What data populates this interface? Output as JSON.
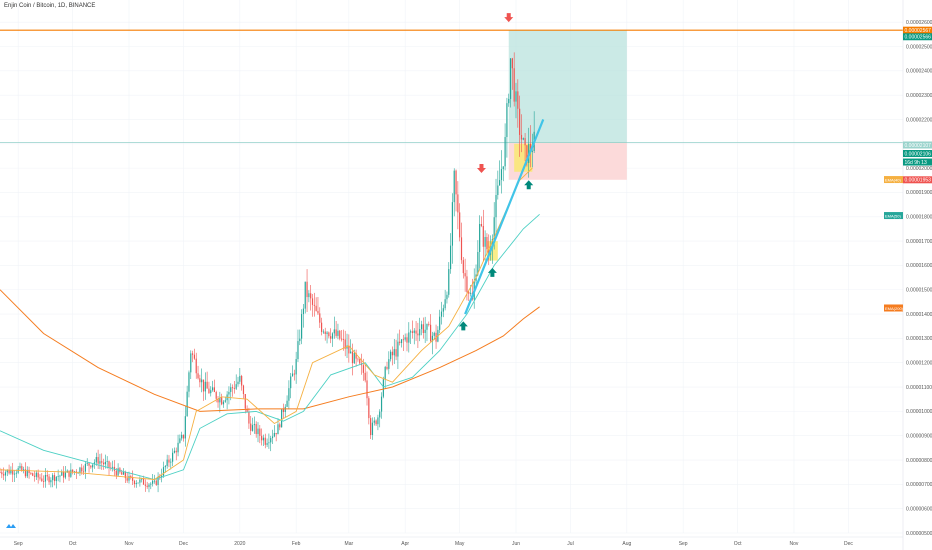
{
  "header": {
    "title": "Enjin Coin / Bitcoin, 1D, BINANCE"
  },
  "colors": {
    "up": "#26a69a",
    "down": "#ef5350",
    "ema_fast": "#f5b041",
    "ema_mid": "#4dd0c4",
    "ema_slow": "#f57c1f",
    "resistance": "#f57c00",
    "entry": "#26a69a",
    "trend": "#40c4e8",
    "highlight": "#f9e86b",
    "target_zone": "#b9e3dd",
    "stop_zone": "#fbd3d3",
    "marker_down": "#ef5350",
    "marker_up": "#00897b"
  },
  "chart_data": {
    "type": "candlestick",
    "title": "Enjin Coin / Bitcoin, 1D, BINANCE",
    "ylim": [
      5e-06,
      2.65e-05
    ],
    "x_range": [
      "2019-08-22",
      "2020-12-31"
    ],
    "x_ticks": [
      {
        "label": "Sep",
        "date": "2019-09-01"
      },
      {
        "label": "Oct",
        "date": "2019-10-01"
      },
      {
        "label": "Nov",
        "date": "2019-11-01"
      },
      {
        "label": "Dec",
        "date": "2019-12-01"
      },
      {
        "label": "2020",
        "date": "2020-01-01"
      },
      {
        "label": "Feb",
        "date": "2020-02-01"
      },
      {
        "label": "Mar",
        "date": "2020-03-01"
      },
      {
        "label": "Apr",
        "date": "2020-04-01"
      },
      {
        "label": "May",
        "date": "2020-05-01"
      },
      {
        "label": "Jun",
        "date": "2020-06-01"
      },
      {
        "label": "Jul",
        "date": "2020-07-01"
      },
      {
        "label": "Aug",
        "date": "2020-08-01"
      },
      {
        "label": "Sep",
        "date": "2020-09-01"
      },
      {
        "label": "Oct",
        "date": "2020-10-01"
      },
      {
        "label": "Nov",
        "date": "2020-11-01"
      },
      {
        "label": "Dec",
        "date": "2020-12-01"
      }
    ],
    "y_ticks": [
      "0.00002600",
      "0.00002500",
      "0.00002400",
      "0.00002300",
      "0.00002200",
      "0.00002100",
      "0.00002000",
      "0.00001900",
      "0.00001800",
      "0.00001700",
      "0.00001600",
      "0.00001500",
      "0.00001400",
      "0.00001300",
      "0.00001200",
      "0.00001100",
      "0.00001000",
      "0.00000900",
      "0.00000800",
      "0.00000700",
      "0.00000600",
      "0.00000500"
    ],
    "price_tags": [
      {
        "label": "0.00002567",
        "value": 2.567e-05,
        "color": "#f57c00"
      },
      {
        "label": "0.00002566",
        "value": 2.54e-05,
        "color": "#089981"
      },
      {
        "label": "0.00002107",
        "value": 2.095e-05,
        "color": "#9ad3cc"
      },
      {
        "label": "0.00002106",
        "value": 2.06e-05,
        "color": "#089981"
      },
      {
        "label": "16d 9h 13",
        "value": 2.025e-05,
        "color": "#089981"
      },
      {
        "label": "0.00001953",
        "value": 1.952e-05,
        "color": "#ef5350"
      }
    ],
    "indicator_tags": [
      {
        "label": "EMA(40)",
        "value": 1.953e-05,
        "color": "#f5b041"
      },
      {
        "label": "EMA(50)",
        "value": 1.805e-05,
        "color": "#26a69a"
      },
      {
        "label": "EMA(200)",
        "value": 1.425e-05,
        "color": "#f57c1f"
      }
    ],
    "resistance": 2.567e-05,
    "position": {
      "entry": 2.105e-05,
      "target": 2.567e-05,
      "stop": 1.952e-05,
      "start": "2020-05-28",
      "end": "2020-08-01"
    },
    "trend_line": [
      {
        "date": "2020-05-04",
        "value": 1.4e-05
      },
      {
        "date": "2020-06-16",
        "value": 2.2e-05
      }
    ],
    "highlights": [
      {
        "start": "2020-05-16",
        "end": "2020-05-22",
        "low": 1.62e-05,
        "high": 1.7e-05
      },
      {
        "start": "2020-05-31",
        "end": "2020-06-10",
        "low": 1.985e-05,
        "high": 2.1e-05
      }
    ],
    "markers": [
      {
        "date": "2020-05-28",
        "value": 2.6e-05,
        "dir": "down"
      },
      {
        "date": "2020-05-13",
        "value": 1.98e-05,
        "dir": "down"
      },
      {
        "date": "2020-05-03",
        "value": 1.37e-05,
        "dir": "up"
      },
      {
        "date": "2020-05-19",
        "value": 1.59e-05,
        "dir": "up"
      },
      {
        "date": "2020-06-08",
        "value": 1.95e-05,
        "dir": "up"
      }
    ],
    "anchors": [
      [
        "2019-08-22",
        7.5e-06
      ],
      [
        "2019-09-01",
        7.6e-06
      ],
      [
        "2019-09-15",
        7.2e-06
      ],
      [
        "2019-10-01",
        7.5e-06
      ],
      [
        "2019-10-15",
        8e-06
      ],
      [
        "2019-11-01",
        7.2e-06
      ],
      [
        "2019-11-15",
        7e-06
      ],
      [
        "2019-11-25",
        8.2e-06
      ],
      [
        "2019-12-01",
        9e-06
      ],
      [
        "2019-12-05",
        1.25e-05
      ],
      [
        "2019-12-12",
        1.1e-05
      ],
      [
        "2019-12-22",
        1.05e-05
      ],
      [
        "2020-01-01",
        1.13e-05
      ],
      [
        "2020-01-06",
        9.5e-06
      ],
      [
        "2020-01-15",
        8.8e-06
      ],
      [
        "2020-01-22",
        9.3e-06
      ],
      [
        "2020-02-01",
        1.2e-05
      ],
      [
        "2020-02-06",
        1.5e-05
      ],
      [
        "2020-02-15",
        1.35e-05
      ],
      [
        "2020-02-25",
        1.3e-05
      ],
      [
        "2020-03-05",
        1.2e-05
      ],
      [
        "2020-03-10",
        1.15e-05
      ],
      [
        "2020-03-13",
        9.2e-06
      ],
      [
        "2020-03-17",
        9.8e-06
      ],
      [
        "2020-03-22",
        1.2e-05
      ],
      [
        "2020-04-01",
        1.3e-05
      ],
      [
        "2020-04-10",
        1.35e-05
      ],
      [
        "2020-04-18",
        1.3e-05
      ],
      [
        "2020-04-25",
        1.55e-05
      ],
      [
        "2020-04-28",
        1.95e-05
      ],
      [
        "2020-05-03",
        1.58e-05
      ],
      [
        "2020-05-08",
        1.45e-05
      ],
      [
        "2020-05-12",
        1.75e-05
      ],
      [
        "2020-05-17",
        1.65e-05
      ],
      [
        "2020-05-22",
        1.9e-05
      ],
      [
        "2020-05-26",
        2.1e-05
      ],
      [
        "2020-05-29",
        2.45e-05
      ],
      [
        "2020-06-02",
        2.2e-05
      ],
      [
        "2020-06-06",
        2.05e-05
      ],
      [
        "2020-06-11",
        2.106e-05
      ]
    ],
    "ema_fast": [
      [
        "2019-08-22",
        7.6e-06
      ],
      [
        "2019-10-01",
        7.5e-06
      ],
      [
        "2019-11-15",
        7.2e-06
      ],
      [
        "2019-12-01",
        8e-06
      ],
      [
        "2019-12-08",
        1e-05
      ],
      [
        "2019-12-22",
        1.06e-05
      ],
      [
        "2020-01-05",
        1.05e-05
      ],
      [
        "2020-01-20",
        9.5e-06
      ],
      [
        "2020-02-01",
        1e-05
      ],
      [
        "2020-02-10",
        1.2e-05
      ],
      [
        "2020-03-01",
        1.27e-05
      ],
      [
        "2020-03-15",
        1.15e-05
      ],
      [
        "2020-03-25",
        1.12e-05
      ],
      [
        "2020-04-10",
        1.25e-05
      ],
      [
        "2020-04-25",
        1.35e-05
      ],
      [
        "2020-05-10",
        1.55e-05
      ],
      [
        "2020-05-25",
        1.8e-05
      ],
      [
        "2020-06-03",
        1.95e-05
      ],
      [
        "2020-06-10",
        2e-05
      ]
    ],
    "ema_mid": [
      [
        "2019-08-22",
        9.2e-06
      ],
      [
        "2019-09-15",
        8.4e-06
      ],
      [
        "2019-10-15",
        7.8e-06
      ],
      [
        "2019-11-15",
        7.2e-06
      ],
      [
        "2019-12-01",
        7.6e-06
      ],
      [
        "2019-12-10",
        9.3e-06
      ],
      [
        "2019-12-25",
        9.9e-06
      ],
      [
        "2020-01-10",
        1e-05
      ],
      [
        "2020-01-25",
        9.6e-06
      ],
      [
        "2020-02-05",
        1e-05
      ],
      [
        "2020-02-20",
        1.15e-05
      ],
      [
        "2020-03-10",
        1.2e-05
      ],
      [
        "2020-03-20",
        1.1e-05
      ],
      [
        "2020-04-05",
        1.14e-05
      ],
      [
        "2020-04-20",
        1.25e-05
      ],
      [
        "2020-05-05",
        1.4e-05
      ],
      [
        "2020-05-20",
        1.6e-05
      ],
      [
        "2020-06-05",
        1.75e-05
      ],
      [
        "2020-06-14",
        1.81e-05
      ]
    ],
    "ema_slow": [
      [
        "2019-08-22",
        1.5e-05
      ],
      [
        "2019-09-15",
        1.32e-05
      ],
      [
        "2019-10-15",
        1.18e-05
      ],
      [
        "2019-11-15",
        1.07e-05
      ],
      [
        "2019-12-10",
        1e-05
      ],
      [
        "2020-01-10",
        1.01e-05
      ],
      [
        "2020-02-05",
        1.01e-05
      ],
      [
        "2020-03-01",
        1.06e-05
      ],
      [
        "2020-03-25",
        1.1e-05
      ],
      [
        "2020-04-20",
        1.18e-05
      ],
      [
        "2020-05-10",
        1.25e-05
      ],
      [
        "2020-05-25",
        1.31e-05
      ],
      [
        "2020-06-05",
        1.38e-05
      ],
      [
        "2020-06-14",
        1.43e-05
      ]
    ]
  }
}
